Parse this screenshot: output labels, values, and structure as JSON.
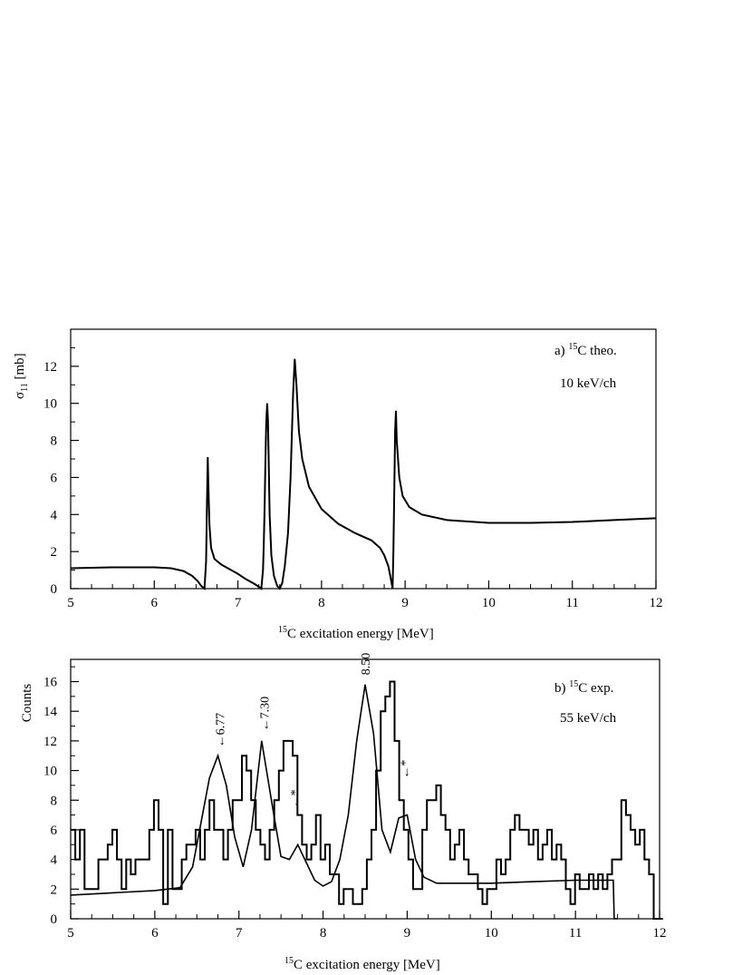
{
  "chart_data": [
    {
      "type": "line",
      "panel_label": "a)",
      "annotation_nucleus": "15",
      "annotation_text": "C theo.",
      "bin_text": "10 keV/ch",
      "ylabel_main": "σ",
      "ylabel_sub": "11",
      "ylabel_unit": " [mb]",
      "xlabel_sup": "15",
      "xlabel_text": "C excitation energy [MeV]",
      "xlim": [
        5,
        12
      ],
      "ylim": [
        0,
        14
      ],
      "x_ticks": [
        5,
        6,
        7,
        8,
        9,
        10,
        11,
        12
      ],
      "y_ticks": [
        0,
        2,
        4,
        6,
        8,
        10,
        12
      ],
      "series": [
        {
          "x": [
            5.0,
            5.5,
            6.0,
            6.2,
            6.35,
            6.45,
            6.52,
            6.56,
            6.6,
            6.62,
            6.63,
            6.64,
            6.65,
            6.66,
            6.68,
            6.72,
            6.8,
            6.9,
            7.0,
            7.1,
            7.2,
            7.25,
            7.28,
            7.3,
            7.31,
            7.32,
            7.33,
            7.34,
            7.35,
            7.36,
            7.37,
            7.38,
            7.4,
            7.43,
            7.47,
            7.5,
            7.53,
            7.56,
            7.6,
            7.63,
            7.66,
            7.68,
            7.7,
            7.73,
            7.77,
            7.85,
            8.0,
            8.2,
            8.4,
            8.6,
            8.7,
            8.75,
            8.8,
            8.83,
            8.85,
            8.86,
            8.87,
            8.88,
            8.89,
            8.9,
            8.93,
            8.97,
            9.05,
            9.2,
            9.5,
            10.0,
            10.5,
            11.0,
            11.5,
            12.0
          ],
          "y": [
            1.1,
            1.15,
            1.15,
            1.1,
            0.95,
            0.7,
            0.4,
            0.15,
            0.0,
            1.5,
            4.5,
            7.1,
            5.0,
            3.4,
            2.2,
            1.6,
            1.3,
            1.05,
            0.8,
            0.5,
            0.25,
            0.1,
            0.0,
            1.0,
            2.5,
            4.5,
            7.0,
            9.0,
            10.0,
            9.0,
            6.5,
            4.0,
            1.8,
            0.7,
            0.15,
            0.0,
            0.3,
            1.2,
            3.0,
            6.0,
            10.5,
            12.4,
            11.0,
            8.5,
            7.0,
            5.5,
            4.3,
            3.5,
            3.0,
            2.6,
            2.2,
            1.8,
            1.2,
            0.5,
            0.0,
            2.0,
            5.0,
            8.5,
            9.6,
            8.0,
            6.0,
            5.0,
            4.4,
            4.0,
            3.7,
            3.55,
            3.55,
            3.6,
            3.7,
            3.8
          ]
        }
      ]
    },
    {
      "type": "line",
      "panel_label": "b)",
      "annotation_nucleus": "15",
      "annotation_text": "C exp.",
      "bin_text": "55 keV/ch",
      "ylabel": "Counts",
      "xlabel_sup": "15",
      "xlabel_text": "C excitation energy [MeV]",
      "xlim": [
        5,
        12
      ],
      "ylim": [
        0,
        17.5
      ],
      "x_ticks": [
        5,
        6,
        7,
        8,
        9,
        10,
        11,
        12
      ],
      "y_ticks": [
        0,
        2,
        4,
        6,
        8,
        10,
        12,
        14,
        16
      ],
      "histogram": {
        "bin_start": 5.0,
        "bin_width": 0.055,
        "counts": [
          6,
          4,
          6,
          2,
          2,
          2,
          4,
          4,
          5,
          6,
          4,
          2,
          4,
          3,
          4,
          4,
          4,
          6,
          8,
          6,
          1,
          6,
          2,
          2,
          4,
          5,
          5,
          6,
          4,
          6,
          8,
          6,
          6,
          4,
          6,
          8,
          8,
          11,
          10,
          8,
          6,
          5,
          4,
          6,
          8,
          10,
          12,
          12,
          11,
          7,
          5,
          4,
          5,
          7,
          4,
          5,
          3,
          3,
          1,
          2,
          2,
          1,
          1,
          2,
          4,
          6,
          10,
          14,
          15,
          16,
          12,
          8,
          6,
          4,
          2,
          2,
          6,
          8,
          8,
          9,
          7,
          6,
          4,
          5,
          6,
          4,
          3,
          3,
          2,
          1,
          2,
          2,
          4,
          3,
          4,
          6,
          7,
          6,
          6,
          5,
          6,
          4,
          5,
          6,
          4,
          5,
          4,
          2,
          1,
          3,
          2,
          2,
          3,
          2,
          3,
          2,
          3,
          4,
          4,
          8,
          7,
          6,
          5,
          6,
          4,
          3,
          0,
          0
        ]
      },
      "series": [
        {
          "x": [
            5.0,
            5.5,
            6.0,
            6.3,
            6.45,
            6.55,
            6.65,
            6.75,
            6.85,
            6.95,
            7.05,
            7.15,
            7.27,
            7.4,
            7.5,
            7.6,
            7.7,
            7.8,
            7.9,
            8.0,
            8.1,
            8.2,
            8.3,
            8.4,
            8.5,
            8.6,
            8.7,
            8.8,
            8.9,
            9.0,
            9.1,
            9.2,
            9.35,
            9.6,
            10.0,
            10.5,
            11.0,
            11.3,
            11.45,
            11.46,
            11.5
          ],
          "y": [
            1.6,
            1.75,
            1.9,
            2.1,
            3.5,
            6.5,
            9.5,
            11.0,
            9.0,
            5.5,
            3.5,
            6.0,
            12.0,
            7.5,
            4.2,
            4.0,
            5.0,
            3.8,
            2.6,
            2.2,
            2.5,
            4.0,
            7.0,
            12.0,
            15.8,
            12.5,
            6.0,
            4.5,
            6.8,
            7.0,
            4.0,
            2.8,
            2.4,
            2.4,
            2.4,
            2.5,
            2.6,
            2.6,
            2.6,
            0,
            0
          ]
        }
      ],
      "annotations": [
        {
          "text": "←6.77",
          "x": 6.77,
          "y": 11.3
        },
        {
          "text": "←7.30",
          "x": 7.3,
          "y": 12.4
        },
        {
          "text": "8.50",
          "x": 8.5,
          "y": 16.2
        },
        {
          "text": "←*",
          "x": 7.66,
          "y": 7.2
        },
        {
          "text": "←*",
          "x": 8.97,
          "y": 9.2
        }
      ]
    }
  ]
}
